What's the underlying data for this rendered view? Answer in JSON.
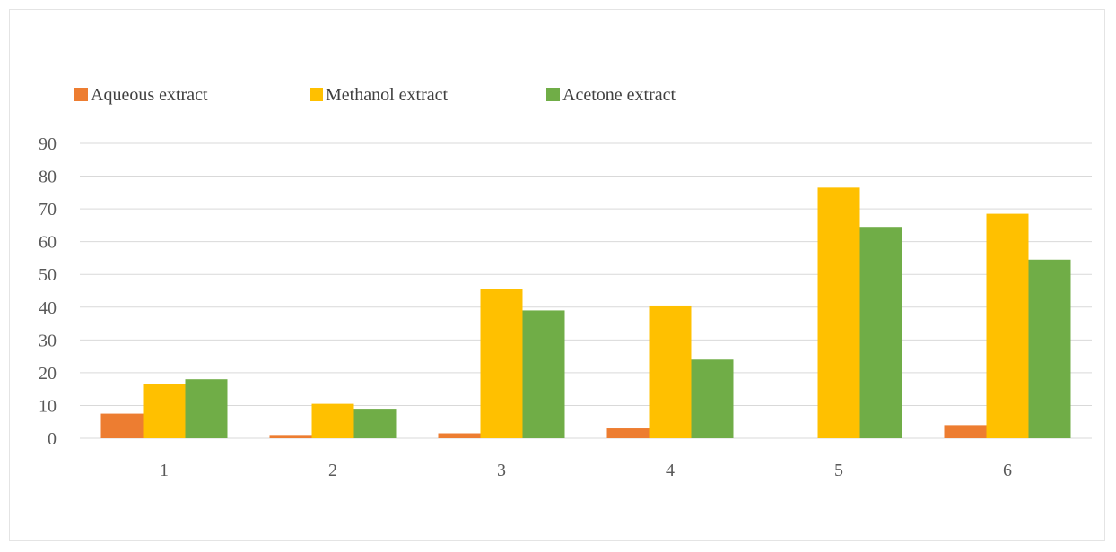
{
  "chart_data": {
    "type": "bar",
    "categories": [
      "1",
      "2",
      "3",
      "4",
      "5",
      "6"
    ],
    "series": [
      {
        "name": "Aqueous extract",
        "color": "#ED7D31",
        "values": [
          7.5,
          1,
          1.5,
          3,
          0,
          4
        ]
      },
      {
        "name": "Methanol extract",
        "color": "#FFC000",
        "values": [
          16.5,
          10.5,
          45.5,
          40.5,
          76.5,
          68.5
        ]
      },
      {
        "name": "Acetone extract",
        "color": "#70AD47",
        "values": [
          18,
          9,
          39,
          24,
          64.5,
          54.5
        ]
      }
    ],
    "ylim": [
      0,
      90
    ],
    "yticks": [
      0,
      10,
      20,
      30,
      40,
      50,
      60,
      70,
      80,
      90
    ],
    "grid": true,
    "legend_position": "top-left"
  }
}
